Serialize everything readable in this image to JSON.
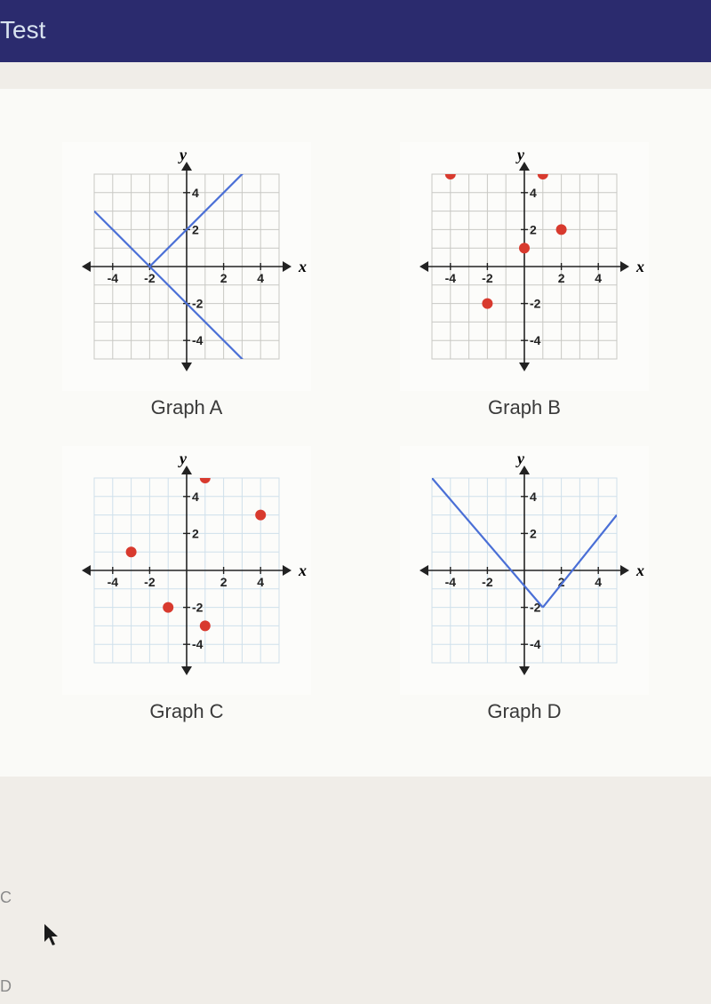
{
  "titlebar": {
    "text": "Test"
  },
  "layout": {
    "rows": 2,
    "cols": 2,
    "background_color": "#fafaf7",
    "page_background": "#f0ede8",
    "titlebar_background": "#2b2b6e",
    "titlebar_text_color": "#d8e2ef"
  },
  "common_axes": {
    "x_label": "x",
    "y_label": "y",
    "xlim": [
      -5,
      5
    ],
    "ylim": [
      -5,
      5
    ],
    "xticks": [
      -4,
      -2,
      2,
      4
    ],
    "yticks": [
      -4,
      -2,
      2,
      4
    ],
    "grid_color": "#c8c8c4",
    "axis_color": "#222222",
    "axis_width": 1.6,
    "tick_font_size": 14,
    "axis_label_font_size": 18,
    "background_color": "#fcfcfa"
  },
  "graphs": {
    "A": {
      "label": "Graph A",
      "type": "line",
      "line_color": "#4a6fd6",
      "line_width": 2.2,
      "grid_color": "#c8c8c4",
      "segments": [
        [
          [
            -5,
            3
          ],
          [
            -2,
            0
          ]
        ],
        [
          [
            -2,
            0
          ],
          [
            5,
            -7
          ]
        ],
        [
          [
            -2,
            0
          ],
          [
            4,
            6
          ]
        ]
      ]
    },
    "B": {
      "label": "Graph B",
      "type": "scatter",
      "point_color": "#d83a2e",
      "point_radius": 6,
      "grid_color": "#c8c8c4",
      "points": [
        [
          -4,
          5
        ],
        [
          -2,
          -2
        ],
        [
          0,
          1
        ],
        [
          1,
          5
        ],
        [
          2,
          2
        ]
      ]
    },
    "C": {
      "label": "Graph C",
      "type": "scatter",
      "point_color": "#d83a2e",
      "point_radius": 6,
      "grid_color": "#cfe0eb",
      "points": [
        [
          -3,
          1
        ],
        [
          -1,
          -2
        ],
        [
          1,
          5
        ],
        [
          1,
          -3
        ],
        [
          4,
          3
        ]
      ]
    },
    "D": {
      "label": "Graph D",
      "type": "line",
      "line_color": "#4a6fd6",
      "line_width": 2.2,
      "grid_color": "#cfe0eb",
      "segments": [
        [
          [
            -5,
            5
          ],
          [
            1,
            -2
          ]
        ],
        [
          [
            1,
            -2
          ],
          [
            5,
            3
          ]
        ]
      ]
    }
  },
  "options": {
    "left1": "C",
    "left2": "D"
  }
}
